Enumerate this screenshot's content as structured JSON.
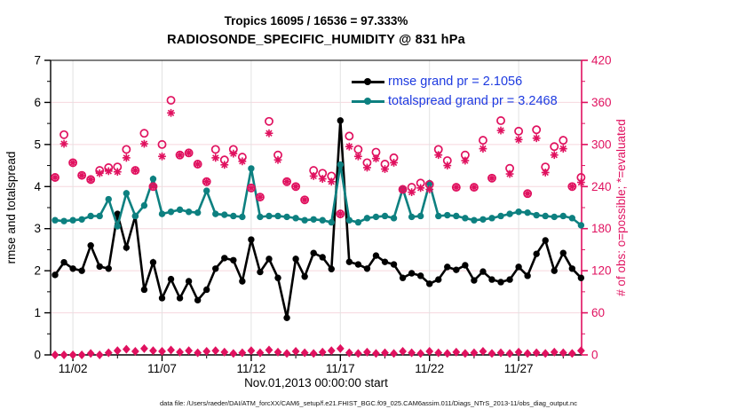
{
  "header": {
    "title_line1": "Tropics 16095 / 16536 = 97.333%",
    "title_line2": "RADIOSONDE_SPECIFIC_HUMIDITY @ 831 hPa"
  },
  "legend": {
    "rmse_label": "rmse grand pr = 2.1056",
    "totalspread_label": "totalspread grand pr = 3.2468",
    "text_color": "#1d3ae0"
  },
  "xaxis_label": "Nov.01,2013 00:00:00 start",
  "footer": {
    "datafile": "data file: /Users/raeder/DAI/ATM_forcXX/CAM6_setup/f.e21.FHIST_BGC.f09_025.CAM6assim.011/Diags_NTrS_2013-11/obs_diag_output.nc"
  },
  "colors": {
    "rmse": "#000000",
    "totalspread": "#0d8080",
    "obs_pink": "#e0115f",
    "grid_h": "#f6d7de",
    "grid_v": "#e2e2e2"
  },
  "chart_data": {
    "type": "line",
    "title": "Tropics 16095 / 16536 = 97.333%  |  RADIOSONDE_SPECIFIC_HUMIDITY @ 831 hPa",
    "x_unit": "day of Nov 2013, twice daily",
    "x_start_day": 1.0,
    "x_step_days": 0.5,
    "x_ticks": [
      {
        "day": 2,
        "label": "11/02"
      },
      {
        "day": 7,
        "label": "11/07"
      },
      {
        "day": 12,
        "label": "11/12"
      },
      {
        "day": 17,
        "label": "11/17"
      },
      {
        "day": 22,
        "label": "11/22"
      },
      {
        "day": 27,
        "label": "11/27"
      }
    ],
    "x_minor_tick_days": [
      4.5,
      9.5,
      14.5,
      19.5,
      24.5,
      29.5
    ],
    "left_axis": {
      "label": "rmse and totalspread",
      "min": 0,
      "max": 7,
      "major_ticks": [
        0,
        1,
        2,
        3,
        4,
        5,
        6,
        7
      ],
      "minor_step": 0.5
    },
    "right_axis": {
      "label": "# of obs: o=possible; *=evaluated",
      "min": 0,
      "max": 420,
      "major_ticks": [
        0,
        60,
        120,
        180,
        240,
        300,
        360,
        420
      ],
      "minor_step": 30
    },
    "grid": "on",
    "legend_position": "top-right-inside",
    "series": [
      {
        "name": "rmse",
        "axis": "left",
        "marker": "dot-line",
        "color": "#000000",
        "values": [
          1.9,
          2.2,
          2.05,
          2.0,
          2.6,
          2.1,
          2.05,
          3.35,
          2.55,
          3.3,
          1.55,
          2.2,
          1.35,
          1.8,
          1.35,
          1.75,
          1.3,
          1.55,
          2.05,
          2.3,
          2.25,
          1.75,
          2.74,
          1.97,
          2.28,
          1.83,
          0.88,
          2.28,
          1.86,
          2.42,
          2.32,
          2.04,
          5.57,
          2.21,
          2.15,
          2.05,
          2.36,
          2.21,
          2.15,
          1.83,
          1.94,
          1.88,
          1.69,
          1.79,
          2.09,
          2.02,
          2.13,
          1.77,
          1.98,
          1.79,
          1.73,
          1.79,
          2.09,
          1.88,
          2.4,
          2.72,
          2.0,
          2.42,
          2.05,
          1.83
        ]
      },
      {
        "name": "totalspread",
        "axis": "left",
        "marker": "dot-line",
        "color": "#0d8080",
        "values": [
          3.2,
          3.18,
          3.2,
          3.22,
          3.3,
          3.3,
          3.7,
          3.06,
          3.84,
          3.3,
          3.55,
          4.18,
          3.35,
          3.4,
          3.45,
          3.4,
          3.38,
          3.9,
          3.35,
          3.33,
          3.3,
          3.28,
          4.43,
          3.28,
          3.3,
          3.3,
          3.28,
          3.25,
          3.2,
          3.22,
          3.2,
          3.15,
          4.52,
          3.2,
          3.15,
          3.25,
          3.28,
          3.3,
          3.25,
          3.95,
          3.28,
          3.3,
          4.08,
          3.3,
          3.32,
          3.3,
          3.25,
          3.2,
          3.22,
          3.25,
          3.3,
          3.35,
          3.4,
          3.38,
          3.32,
          3.3,
          3.28,
          3.3,
          3.25,
          3.08
        ]
      },
      {
        "name": "obs_possible",
        "axis": "right",
        "marker": "open-circle",
        "color": "#e0115f",
        "values": [
          253,
          314,
          274,
          256,
          250,
          263,
          267,
          268,
          293,
          263,
          316,
          240,
          300,
          363,
          285,
          288,
          272,
          247,
          293,
          278,
          293,
          282,
          238,
          225,
          333,
          285,
          247,
          240,
          221,
          263,
          259,
          255,
          201,
          312,
          293,
          274,
          289,
          272,
          281,
          236,
          239,
          245,
          243,
          293,
          277,
          239,
          285,
          239,
          306,
          252,
          334,
          266,
          319,
          230,
          321,
          268,
          297,
          306,
          240,
          253
        ]
      },
      {
        "name": "obs_evaluated",
        "axis": "right",
        "marker": "asterisk",
        "color": "#e0115f",
        "values": [
          253,
          301,
          274,
          256,
          250,
          259,
          262,
          261,
          281,
          263,
          301,
          240,
          283,
          345,
          285,
          288,
          272,
          247,
          281,
          271,
          287,
          276,
          238,
          225,
          316,
          278,
          247,
          240,
          221,
          255,
          251,
          247,
          201,
          297,
          283,
          267,
          280,
          265,
          274,
          236,
          232,
          238,
          236,
          285,
          270,
          239,
          277,
          239,
          294,
          252,
          320,
          258,
          307,
          230,
          309,
          260,
          285,
          294,
          240,
          246
        ]
      },
      {
        "name": "obs_flagged_near_zero",
        "axis": "right",
        "marker": "diamond",
        "color": "#e0115f",
        "values": [
          0,
          0,
          0,
          0,
          2,
          0,
          3,
          6,
          8,
          5,
          9,
          6,
          5,
          7,
          4,
          6,
          3,
          5,
          6,
          4,
          2,
          3,
          6,
          3,
          7,
          4,
          2,
          5,
          3,
          2,
          4,
          6,
          9,
          3,
          2,
          4,
          2,
          3,
          2,
          5,
          3,
          2,
          5,
          3,
          2,
          4,
          2,
          3,
          5,
          2,
          3,
          2,
          4,
          2,
          3,
          2,
          4,
          3,
          2,
          6
        ]
      }
    ]
  }
}
